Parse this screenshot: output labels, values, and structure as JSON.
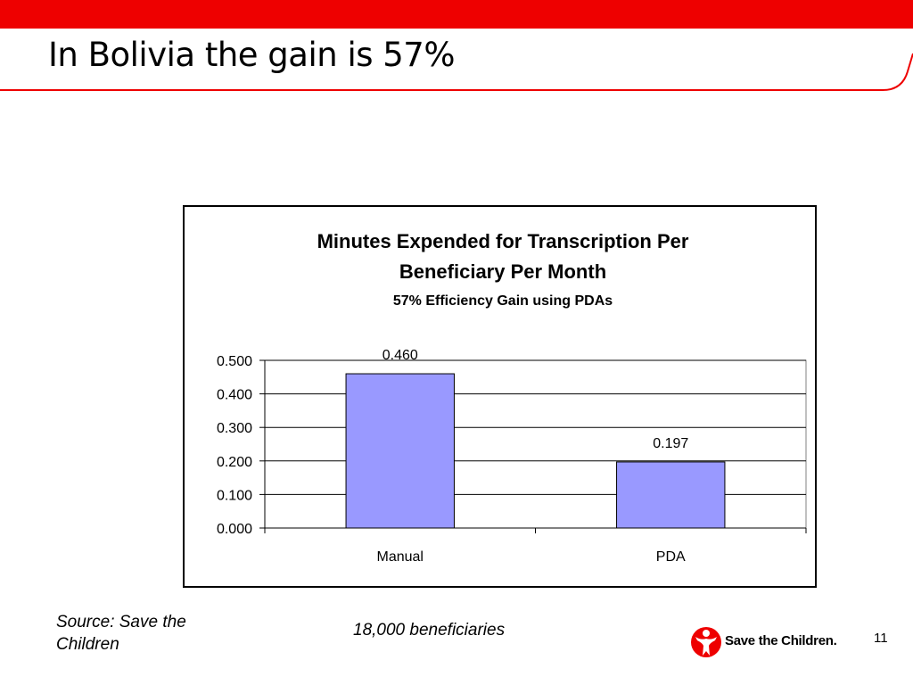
{
  "slide": {
    "title": "In Bolivia the gain is 57%",
    "source": "Source: Save the Children",
    "note": "18,000 beneficiaries",
    "page_number": "11",
    "logo_text": "Save the Children.",
    "accent_color": "#ee0000"
  },
  "chart_data": {
    "type": "bar",
    "title_line1": "Minutes Expended for Transcription Per",
    "title_line2": "Beneficiary Per Month",
    "subtitle": "57% Efficiency Gain using PDAs",
    "categories": [
      "Manual",
      "PDA"
    ],
    "values": [
      0.46,
      0.197
    ],
    "data_labels": [
      "0.460",
      "0.197"
    ],
    "ylim": [
      0,
      0.5
    ],
    "yticks": [
      "0.000",
      "0.100",
      "0.200",
      "0.300",
      "0.400",
      "0.500"
    ],
    "grid": true,
    "bar_color": "#9999ff",
    "legend": "none"
  }
}
